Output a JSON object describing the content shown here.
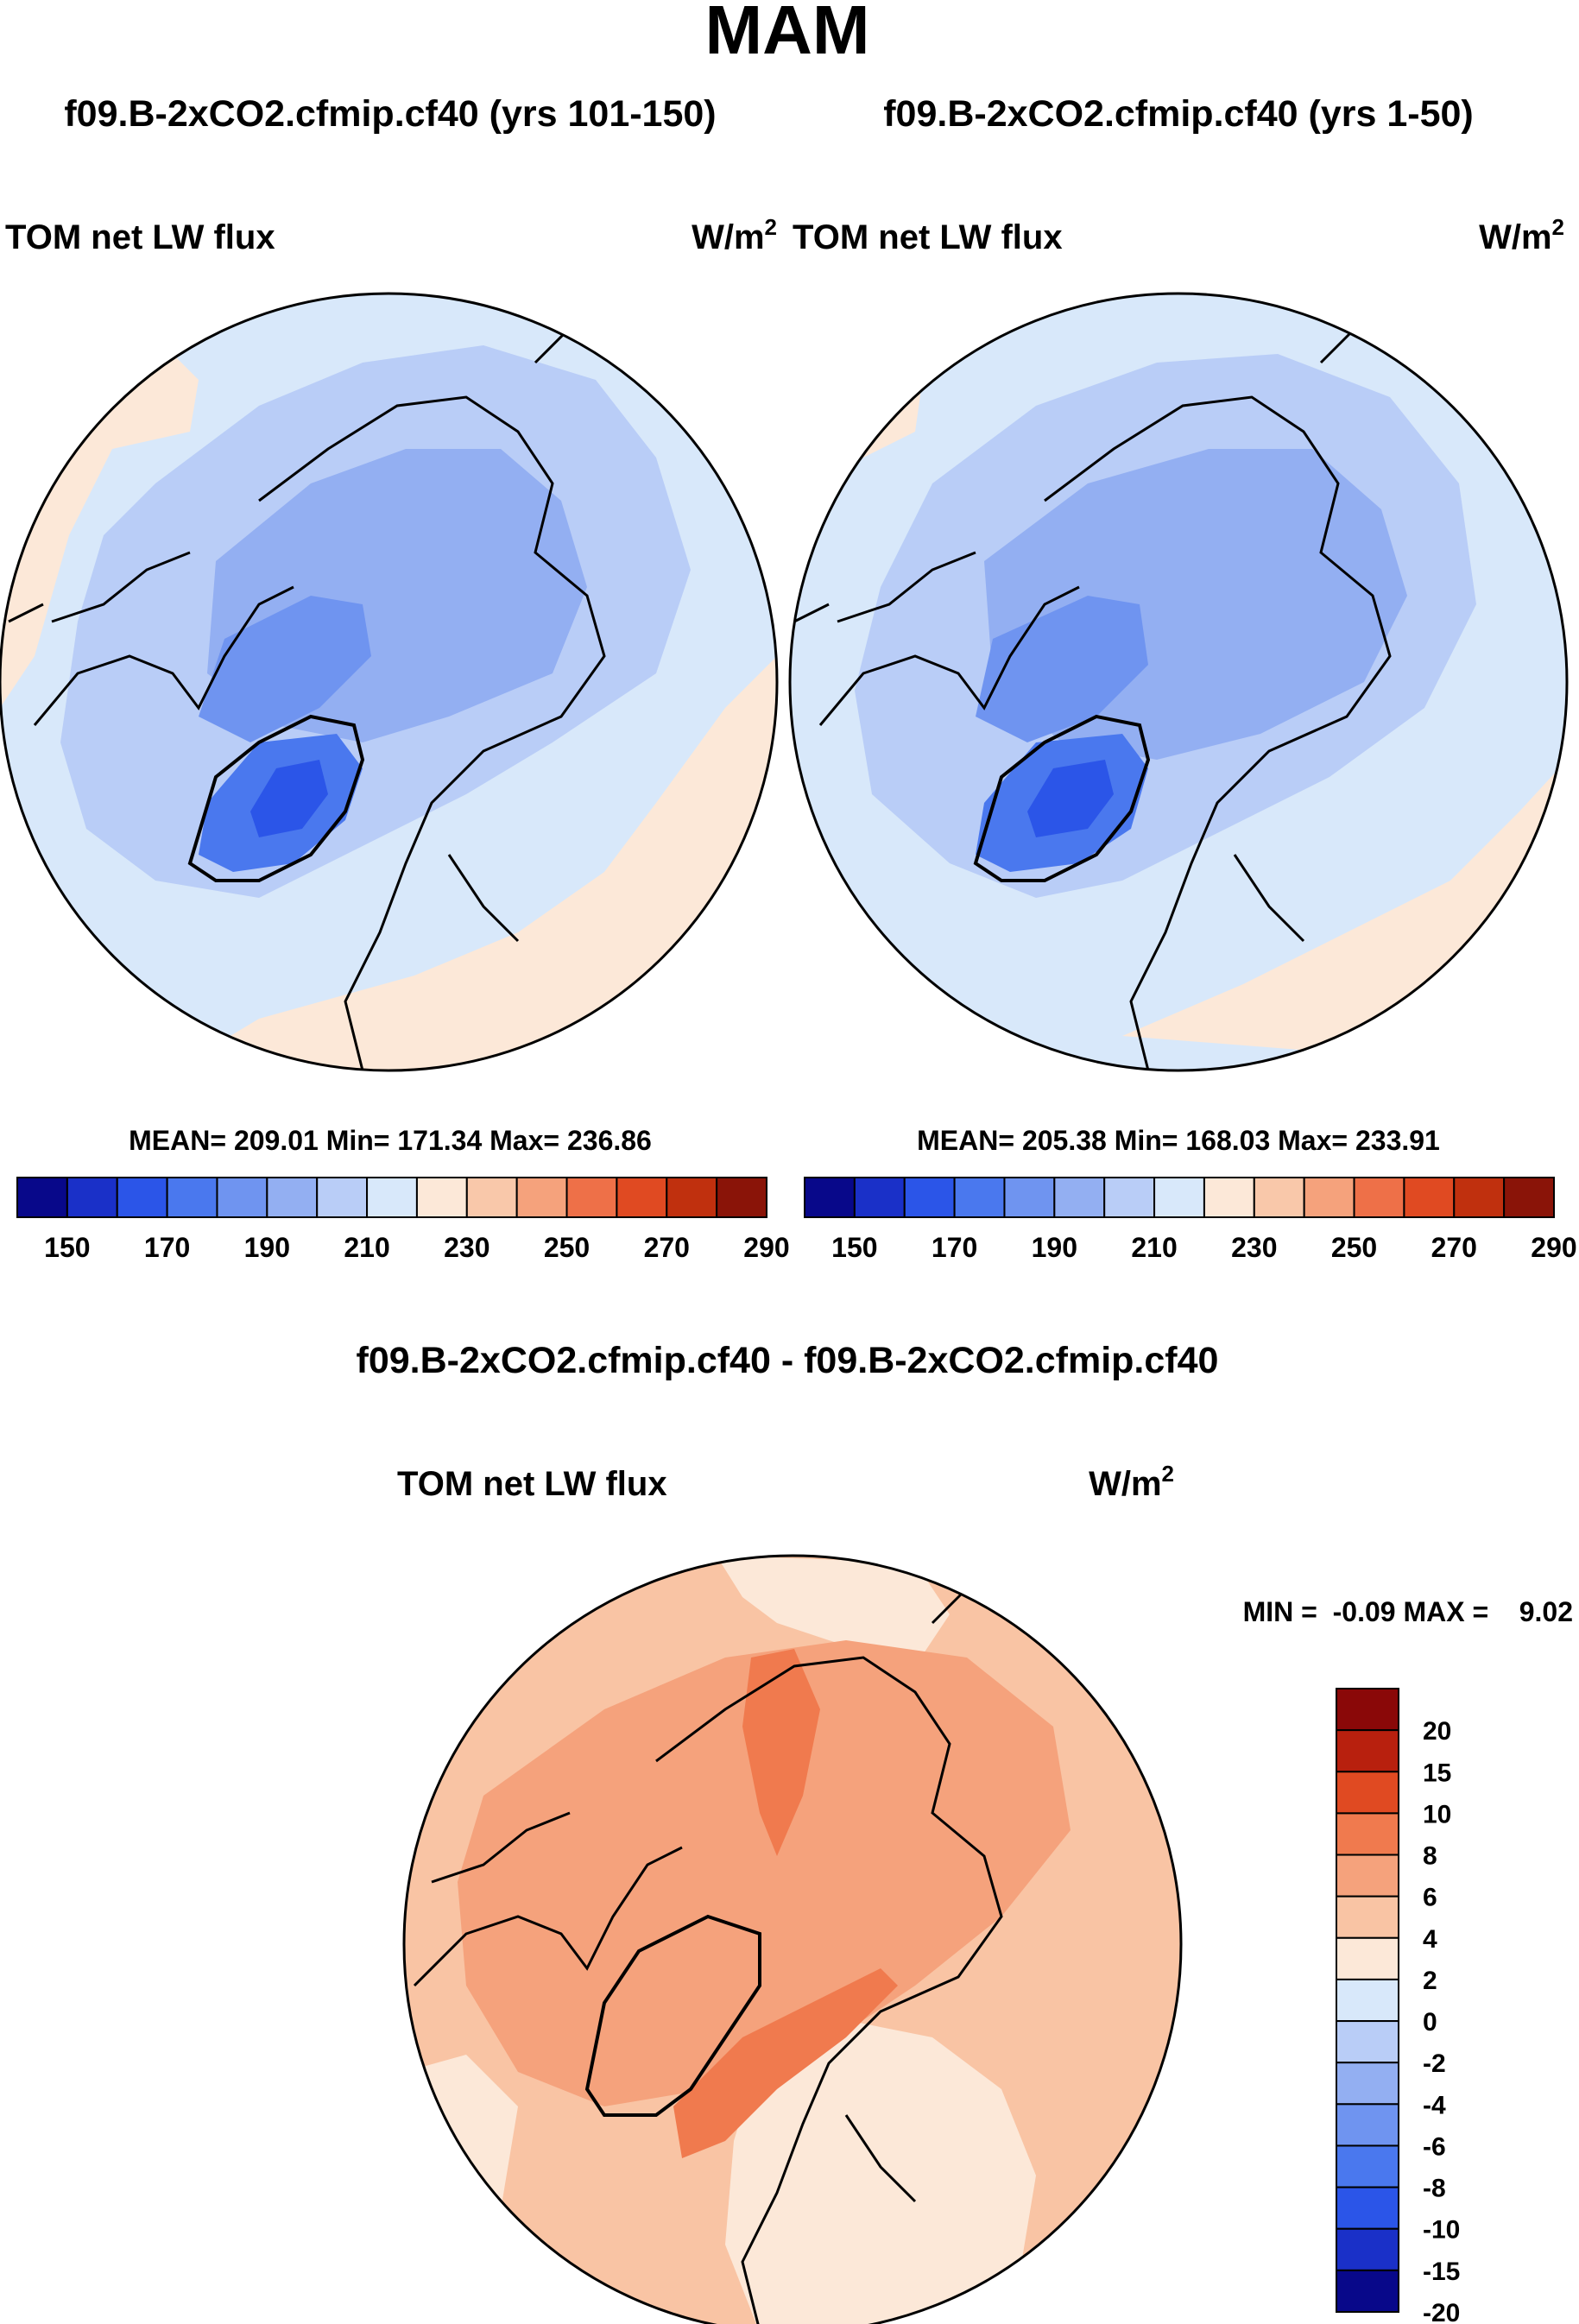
{
  "chart_data": [
    {
      "type": "heatmap",
      "projection": "north-polar-stereographic",
      "title": "f09.B-2xCO2.cfmip.cf40 (yrs 101-150)",
      "variable": "TOM net LW flux",
      "units_base": "W/m",
      "units_exp": "2",
      "stats": "MEAN= 209.01  Min= 171.34  Max= 236.86",
      "mean": 209.01,
      "min": 171.34,
      "max": 236.86,
      "colorbar": {
        "orientation": "horizontal",
        "levels": [
          150,
          160,
          170,
          180,
          190,
          200,
          210,
          220,
          230,
          240,
          250,
          260,
          270,
          280,
          290
        ],
        "tick_labels": [
          "150",
          "170",
          "190",
          "210",
          "230",
          "250",
          "270",
          "290"
        ]
      }
    },
    {
      "type": "heatmap",
      "projection": "north-polar-stereographic",
      "title": "f09.B-2xCO2.cfmip.cf40 (yrs 1-50)",
      "variable": "TOM net LW flux",
      "units_base": "W/m",
      "units_exp": "2",
      "stats": "MEAN= 205.38  Min= 168.03  Max= 233.91",
      "mean": 205.38,
      "min": 168.03,
      "max": 233.91,
      "colorbar": {
        "orientation": "horizontal",
        "levels": [
          150,
          160,
          170,
          180,
          190,
          200,
          210,
          220,
          230,
          240,
          250,
          260,
          270,
          280,
          290
        ],
        "tick_labels": [
          "150",
          "170",
          "190",
          "210",
          "230",
          "250",
          "270",
          "290"
        ]
      }
    },
    {
      "type": "heatmap",
      "projection": "north-polar-stereographic",
      "title": "f09.B-2xCO2.cfmip.cf40 - f09.B-2xCO2.cfmip.cf40",
      "variable": "TOM net LW flux",
      "units_base": "W/m",
      "units_exp": "2",
      "stats": "MIN =  -0.09 MAX =    9.02",
      "min": -0.09,
      "max": 9.02,
      "colorbar": {
        "orientation": "vertical",
        "levels": [
          20,
          15,
          10,
          8,
          6,
          4,
          2,
          0,
          -2,
          -4,
          -6,
          -8,
          -10,
          -15,
          -20
        ],
        "tick_labels": [
          "20",
          "15",
          "10",
          "8",
          "6",
          "4",
          "2",
          "0",
          "-2",
          "-4",
          "-6",
          "-8",
          "-10",
          "-15",
          "-20"
        ]
      }
    }
  ],
  "page": {
    "season": "MAM",
    "colors": {
      "abs_palette": [
        "#08088a",
        "#1a30c8",
        "#2b55e8",
        "#4a78ee",
        "#6f94f0",
        "#93aff2",
        "#b9cdf7",
        "#d8e8fa",
        "#fce8d8",
        "#f9c8aa",
        "#f5a27c",
        "#ee7048",
        "#e04a22",
        "#c0300e",
        "#8a1408"
      ],
      "diff_palette": [
        "#8a0808",
        "#b8200e",
        "#e04a22",
        "#f07a4e",
        "#f5a27c",
        "#f9c4a4",
        "#fce8d8",
        "#d8e8fa",
        "#b9cdf7",
        "#93aff2",
        "#6f94f0",
        "#4a78ee",
        "#2b55e8",
        "#1a30c8",
        "#08088a"
      ]
    }
  }
}
